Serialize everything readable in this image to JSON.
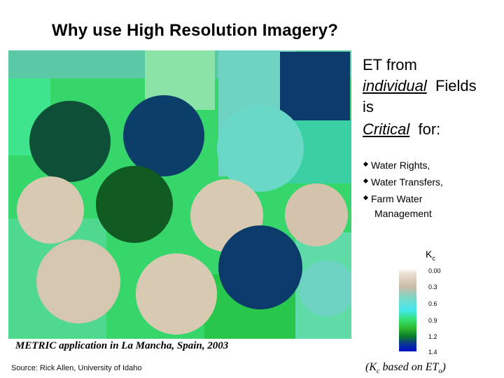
{
  "title": "Why use High Resolution Imagery?",
  "headline": {
    "line1": "ET from",
    "individual": "individual",
    "fields": "Fields",
    "is": "is",
    "critical": "Critical",
    "for": "for:"
  },
  "bullets": {
    "water_rights": "Water Rights,",
    "water_transfers": "Water Transfers,",
    "farm_water": "Farm Water",
    "management": "Management"
  },
  "legend": {
    "title_main": "K",
    "title_sub": "c",
    "ticks": [
      "0.00",
      "0.3",
      "0.6",
      "0.9",
      "1.2",
      "1.4"
    ],
    "colors": [
      "#e8dccb",
      "#c9bba6",
      "#75d7c8",
      "#45e8ee",
      "#34e070",
      "#2db92e",
      "#0b7a2a",
      "#0b3a8d",
      "#0010c8"
    ]
  },
  "caption": "METRIC application in La Mancha, Spain, 2003",
  "source": "Source: Rick Allen, University of Idaho",
  "kc_note": {
    "open": "(K",
    "sub1": "c",
    "mid": " based on ET",
    "sub2": "o",
    "close": ")"
  },
  "imagery_colors": {
    "background": "#3ee07a",
    "dark_green": "#0f5b22",
    "dark_blue": "#0b3a6b",
    "beige": "#d8c9b3",
    "cyan": "#6fd3c4",
    "light_green": "#7ef0a0"
  }
}
